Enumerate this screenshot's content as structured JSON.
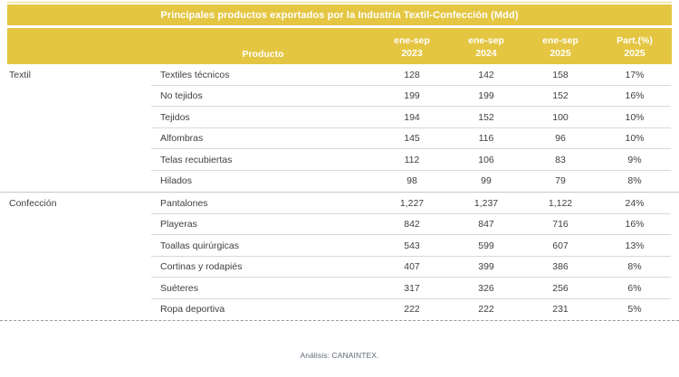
{
  "accent_color": "#e4c643",
  "title": "Principales productos exportados por la Industria Textil-Confección (Mdd)",
  "header": {
    "product_label": "Producto",
    "period_columns": [
      {
        "line1": "ene-sep",
        "line2": "2023"
      },
      {
        "line1": "ene-sep",
        "line2": "2024"
      },
      {
        "line1": "ene-sep",
        "line2": "2025"
      },
      {
        "line1": "Part.(%)",
        "line2": "2025"
      }
    ]
  },
  "groups": [
    {
      "category": "Textil",
      "rows": [
        {
          "product": "Textiles técnicos",
          "v2023": "128",
          "v2024": "142",
          "v2025": "158",
          "part": "17%"
        },
        {
          "product": "No tejidos",
          "v2023": "199",
          "v2024": "199",
          "v2025": "152",
          "part": "16%"
        },
        {
          "product": "Tejidos",
          "v2023": "194",
          "v2024": "152",
          "v2025": "100",
          "part": "10%"
        },
        {
          "product": "Alfombras",
          "v2023": "145",
          "v2024": "116",
          "v2025": "96",
          "part": "10%"
        },
        {
          "product": "Telas recubiertas",
          "v2023": "112",
          "v2024": "106",
          "v2025": "83",
          "part": "9%"
        },
        {
          "product": "Hilados",
          "v2023": "98",
          "v2024": "99",
          "v2025": "79",
          "part": "8%"
        }
      ]
    },
    {
      "category": "Confección",
      "rows": [
        {
          "product": "Pantalones",
          "v2023": "1,227",
          "v2024": "1,237",
          "v2025": "1,122",
          "part": "24%"
        },
        {
          "product": "Playeras",
          "v2023": "842",
          "v2024": "847",
          "v2025": "716",
          "part": "16%"
        },
        {
          "product": "Toallas quirúrgicas",
          "v2023": "543",
          "v2024": "599",
          "v2025": "607",
          "part": "13%"
        },
        {
          "product": "Cortinas y rodapiés",
          "v2023": "407",
          "v2024": "399",
          "v2025": "386",
          "part": "8%"
        },
        {
          "product": "Suéteres",
          "v2023": "317",
          "v2024": "326",
          "v2025": "256",
          "part": "6%"
        },
        {
          "product": "Ropa deportiva",
          "v2023": "222",
          "v2024": "222",
          "v2025": "231",
          "part": "5%"
        }
      ]
    }
  ],
  "footer": "Análisis: CANAINTEX.",
  "chart_data": {
    "type": "table",
    "title": "Principales productos exportados por la Industria Textil-Confección (Mdd)",
    "columns": [
      "Producto",
      "ene-sep 2023",
      "ene-sep 2024",
      "ene-sep 2025",
      "Part.(%) 2025"
    ],
    "groups": [
      {
        "category": "Textil",
        "rows": [
          {
            "product": "Textiles técnicos",
            "values": [
              128,
              142,
              158
            ],
            "part_pct_2025": 17
          },
          {
            "product": "No tejidos",
            "values": [
              199,
              199,
              152
            ],
            "part_pct_2025": 16
          },
          {
            "product": "Tejidos",
            "values": [
              194,
              152,
              100
            ],
            "part_pct_2025": 10
          },
          {
            "product": "Alfombras",
            "values": [
              145,
              116,
              96
            ],
            "part_pct_2025": 10
          },
          {
            "product": "Telas recubiertas",
            "values": [
              112,
              106,
              83
            ],
            "part_pct_2025": 9
          },
          {
            "product": "Hilados",
            "values": [
              98,
              99,
              79
            ],
            "part_pct_2025": 8
          }
        ]
      },
      {
        "category": "Confección",
        "rows": [
          {
            "product": "Pantalones",
            "values": [
              1227,
              1237,
              1122
            ],
            "part_pct_2025": 24
          },
          {
            "product": "Playeras",
            "values": [
              842,
              847,
              716
            ],
            "part_pct_2025": 16
          },
          {
            "product": "Toallas quirúrgicas",
            "values": [
              543,
              599,
              607
            ],
            "part_pct_2025": 13
          },
          {
            "product": "Cortinas y rodapiés",
            "values": [
              407,
              399,
              386
            ],
            "part_pct_2025": 8
          },
          {
            "product": "Suéteres",
            "values": [
              317,
              326,
              256
            ],
            "part_pct_2025": 6
          },
          {
            "product": "Ropa deportiva",
            "values": [
              222,
              222,
              231
            ],
            "part_pct_2025": 5
          }
        ]
      }
    ],
    "units": "Mdd",
    "source_note": "Análisis: CANAINTEX."
  }
}
